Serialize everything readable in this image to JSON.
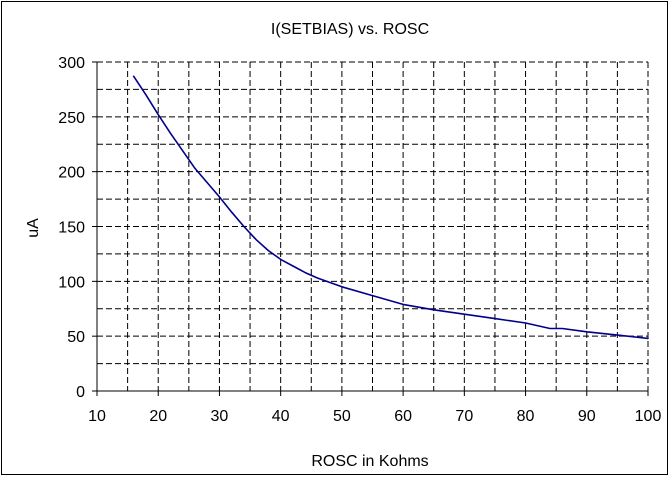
{
  "chart_data": {
    "type": "line",
    "title": "I(SETBIAS) vs. ROSC",
    "xlabel": "ROSC in Kohms",
    "ylabel": "uA",
    "xlim": [
      10,
      100
    ],
    "ylim": [
      0,
      300
    ],
    "x_ticks": [
      10,
      20,
      30,
      40,
      50,
      60,
      70,
      80,
      90,
      100
    ],
    "y_ticks": [
      0,
      50,
      100,
      150,
      200,
      250,
      300
    ],
    "x_minor_step": 5,
    "y_minor_step": 25,
    "grid": true,
    "legend": "none",
    "line_color": "#00008B",
    "series": [
      {
        "x": [
          16,
          18,
          20,
          22,
          24,
          26,
          28,
          30,
          32,
          34,
          36,
          38,
          40,
          42,
          44,
          46,
          48,
          50,
          55,
          60,
          65,
          70,
          75,
          80,
          84,
          86,
          90,
          95,
          100
        ],
        "y": [
          287,
          270,
          252,
          235,
          219,
          203,
          190,
          177,
          163,
          150,
          138,
          128,
          120,
          114,
          108,
          103,
          99,
          95,
          87,
          79,
          74,
          70,
          66,
          62,
          57,
          57,
          54,
          51,
          48
        ]
      }
    ]
  }
}
